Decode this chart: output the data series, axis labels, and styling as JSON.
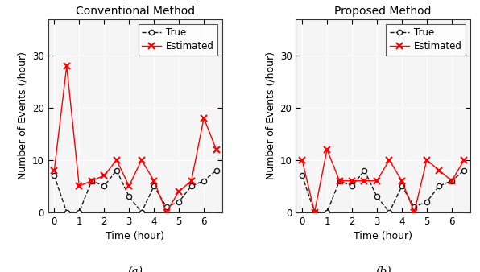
{
  "subplot_a": {
    "title": "Conventional Method",
    "true_x": [
      0,
      0.5,
      1.0,
      1.5,
      2.0,
      2.5,
      3.0,
      3.5,
      4.0,
      4.5,
      5.0,
      5.5,
      6.0,
      6.5
    ],
    "true_y": [
      7,
      0,
      0,
      6,
      5,
      8,
      3,
      0,
      5,
      1,
      2,
      5,
      6,
      8
    ],
    "est_x": [
      0,
      0.5,
      1.0,
      1.5,
      2.0,
      2.5,
      3.0,
      3.5,
      4.0,
      4.5,
      5.0,
      5.5,
      6.0,
      6.5
    ],
    "est_y": [
      8,
      28,
      5,
      6,
      7,
      10,
      5,
      10,
      6,
      0,
      4,
      6,
      18,
      12
    ]
  },
  "subplot_b": {
    "title": "Proposed Method",
    "true_x": [
      0,
      0.5,
      1.0,
      1.5,
      2.0,
      2.5,
      3.0,
      3.5,
      4.0,
      4.5,
      5.0,
      5.5,
      6.0,
      6.5
    ],
    "true_y": [
      7,
      0,
      0,
      6,
      5,
      8,
      3,
      0,
      5,
      1,
      2,
      5,
      6,
      8
    ],
    "est_x": [
      0,
      0.5,
      1.0,
      1.5,
      2.0,
      2.5,
      3.0,
      3.5,
      4.0,
      4.5,
      5.0,
      5.5,
      6.0,
      6.5
    ],
    "est_y": [
      10,
      0,
      12,
      6,
      6,
      6,
      6,
      10,
      6,
      0,
      10,
      8,
      6,
      10
    ]
  },
  "xlabel": "Time (hour)",
  "ylabel": "Number of Events (/hour)",
  "ylim": [
    0,
    37
  ],
  "xlim": [
    -0.25,
    6.75
  ],
  "yticks": [
    0,
    10,
    20,
    30
  ],
  "xticks": [
    0,
    1,
    2,
    3,
    4,
    5,
    6
  ],
  "true_color": "#1a1a1a",
  "est_color": "#ff0000",
  "label_a": "(a)",
  "label_b": "(b)",
  "legend_true": "True",
  "legend_est": "Estimated",
  "title_fontsize": 10,
  "label_fontsize": 9,
  "tick_fontsize": 8.5,
  "legend_fontsize": 8.5,
  "sublabel_fontsize": 10,
  "bg_color": "#f5f5f5",
  "grid_color": "#ffffff",
  "spine_color": "#333333"
}
